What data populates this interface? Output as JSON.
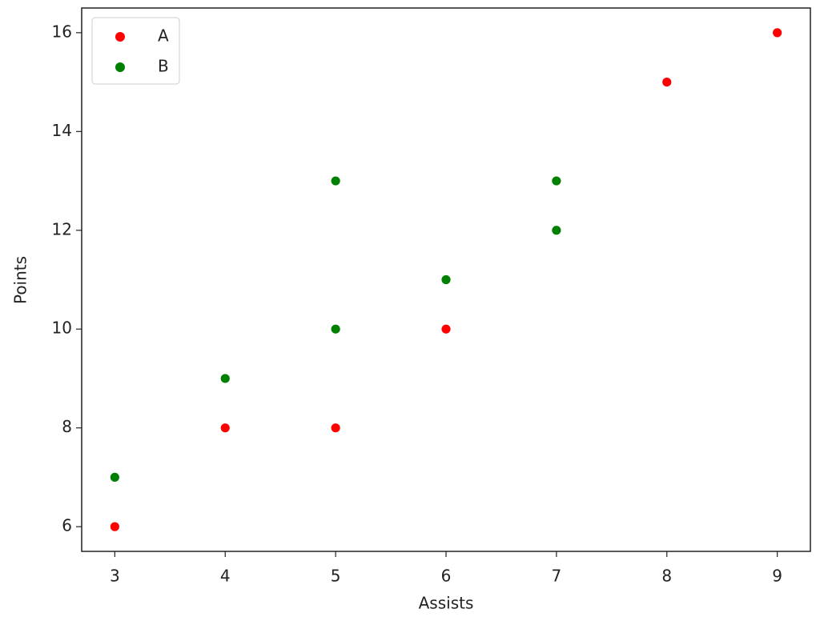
{
  "chart_data": {
    "type": "scatter",
    "x_label": "Assists",
    "y_label": "Points",
    "series": [
      {
        "name": "A",
        "color": "#ff0000",
        "x": [
          3,
          4,
          5,
          6,
          8,
          9
        ],
        "values": [
          6,
          8,
          8,
          10,
          15,
          16
        ]
      },
      {
        "name": "B",
        "color": "#008000",
        "x": [
          3,
          4,
          5,
          5,
          6,
          7,
          7
        ],
        "values": [
          7,
          9,
          13,
          10,
          11,
          13,
          12
        ]
      }
    ],
    "xlim": [
      2.7,
      9.3
    ],
    "xticks": [
      3,
      4,
      5,
      6,
      7,
      8,
      9
    ],
    "ylim": [
      5.5,
      16.5
    ],
    "yticks": [
      6,
      8,
      10,
      12,
      14,
      16
    ],
    "grid": false,
    "legend": "upper left"
  }
}
